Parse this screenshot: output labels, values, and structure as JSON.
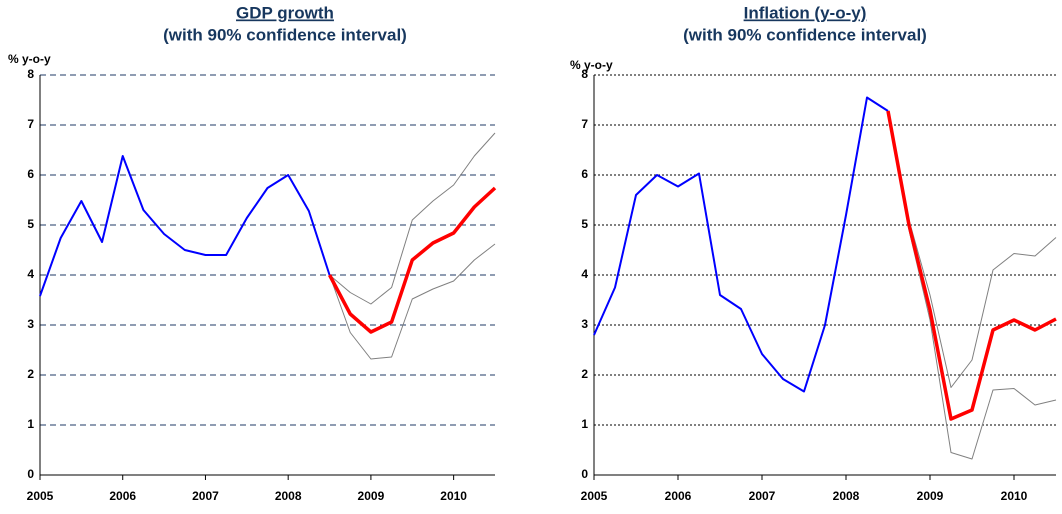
{
  "chart_data": [
    {
      "type": "line",
      "title": "GDP growth",
      "subtitle": "(with 90% confidence interval)",
      "y_label": "% y-o-y",
      "x": [
        2005,
        2005.25,
        2005.5,
        2005.75,
        2006,
        2006.25,
        2006.5,
        2006.75,
        2007,
        2007.25,
        2007.5,
        2007.75,
        2008,
        2008.25,
        2008.5,
        2008.75,
        2009,
        2009.25,
        2009.5,
        2009.75,
        2010,
        2010.25,
        2010.5
      ],
      "series": [
        {
          "color": "#808080",
          "values": [
            null,
            null,
            null,
            null,
            null,
            null,
            null,
            null,
            null,
            null,
            null,
            null,
            null,
            null,
            4.0,
            3.65,
            3.42,
            3.75,
            5.1,
            5.48,
            5.8,
            6.38,
            6.84
          ]
        },
        {
          "color": "#808080",
          "values": [
            null,
            null,
            null,
            null,
            null,
            null,
            null,
            null,
            null,
            null,
            null,
            null,
            null,
            null,
            4.0,
            2.85,
            2.32,
            2.36,
            3.52,
            3.72,
            3.88,
            4.3,
            4.62
          ]
        },
        {
          "color": "#0000ff",
          "values": [
            3.58,
            4.74,
            5.48,
            4.66,
            6.38,
            5.3,
            4.82,
            4.5,
            4.4,
            4.4,
            5.14,
            5.74,
            6.0,
            5.28,
            4.0,
            null,
            null,
            null,
            null,
            null,
            null,
            null,
            null
          ]
        },
        {
          "color": "#ff0000",
          "values": [
            null,
            null,
            null,
            null,
            null,
            null,
            null,
            null,
            null,
            null,
            null,
            null,
            null,
            null,
            4.0,
            3.22,
            2.86,
            3.06,
            4.3,
            4.64,
            4.84,
            5.36,
            5.74
          ]
        }
      ],
      "xlim": [
        2005,
        2010.5
      ],
      "xticks": [
        2005,
        2006,
        2007,
        2008,
        2009,
        2010
      ],
      "ylim": [
        0,
        8
      ],
      "yticks": [
        0,
        1,
        2,
        3,
        4,
        5,
        6,
        7,
        8
      ],
      "grid": true,
      "grid_style": "dashed",
      "grid_color": "#1f3864"
    },
    {
      "type": "line",
      "title": "Inflation (y-o-y)",
      "subtitle": "(with 90% confidence interval)",
      "y_label": "% y-o-y",
      "x": [
        2005,
        2005.25,
        2005.5,
        2005.75,
        2006,
        2006.25,
        2006.5,
        2006.75,
        2007,
        2007.25,
        2007.5,
        2007.75,
        2008,
        2008.25,
        2008.5,
        2008.75,
        2009,
        2009.25,
        2009.5,
        2009.75,
        2010,
        2010.25,
        2010.5
      ],
      "series": [
        {
          "color": "#808080",
          "values": [
            null,
            null,
            null,
            null,
            null,
            null,
            null,
            null,
            null,
            null,
            null,
            null,
            null,
            null,
            7.28,
            5.1,
            3.6,
            1.75,
            2.3,
            4.1,
            4.43,
            4.38,
            4.75
          ]
        },
        {
          "color": "#808080",
          "values": [
            null,
            null,
            null,
            null,
            null,
            null,
            null,
            null,
            null,
            null,
            null,
            null,
            null,
            null,
            7.28,
            4.9,
            3.1,
            0.45,
            0.32,
            1.7,
            1.73,
            1.4,
            1.5
          ]
        },
        {
          "color": "#0000ff",
          "values": [
            2.8,
            3.75,
            5.6,
            6.0,
            5.77,
            6.03,
            3.6,
            3.32,
            2.42,
            1.92,
            1.67,
            3.0,
            5.2,
            7.55,
            7.28,
            null,
            null,
            null,
            null,
            null,
            null,
            null,
            null
          ]
        },
        {
          "color": "#ff0000",
          "values": [
            null,
            null,
            null,
            null,
            null,
            null,
            null,
            null,
            null,
            null,
            null,
            null,
            null,
            null,
            7.28,
            5.0,
            3.3,
            1.12,
            1.3,
            2.9,
            3.1,
            2.9,
            3.12
          ]
        }
      ],
      "xlim": [
        2005,
        2010.5
      ],
      "xticks": [
        2005,
        2006,
        2007,
        2008,
        2009,
        2010
      ],
      "ylim": [
        0,
        8
      ],
      "yticks": [
        0,
        1,
        2,
        3,
        4,
        5,
        6,
        7,
        8
      ],
      "grid": true,
      "grid_style": "dotted",
      "grid_color": "#000000"
    }
  ]
}
